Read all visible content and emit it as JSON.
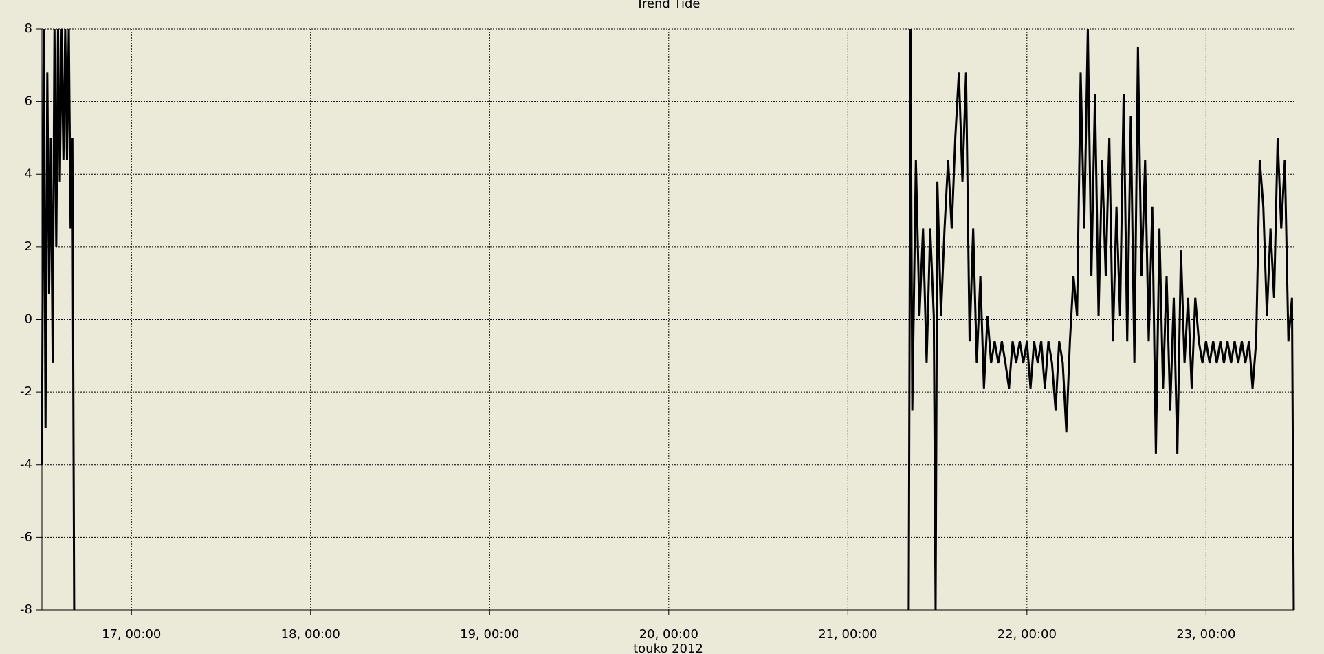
{
  "chart_data": {
    "type": "line",
    "title": "Trend Tide",
    "x_label": "touko 2012",
    "xlim": [
      16.5,
      23.49
    ],
    "ylim": [
      -8,
      8
    ],
    "xticks": [
      {
        "value": 17,
        "label": "17, 00:00"
      },
      {
        "value": 18,
        "label": "18, 00:00"
      },
      {
        "value": 19,
        "label": "19, 00:00"
      },
      {
        "value": 20,
        "label": "20, 00:00"
      },
      {
        "value": 21,
        "label": "21, 00:00"
      },
      {
        "value": 22,
        "label": "22, 00:00"
      },
      {
        "value": 23,
        "label": "23, 00:00"
      }
    ],
    "yticks": [
      -8,
      -6,
      -4,
      -2,
      0,
      2,
      4,
      6,
      8
    ],
    "grid": true,
    "background": "#ebe9d8",
    "series": [
      {
        "color": "#000000",
        "x": [
          16.5,
          16.51,
          16.52,
          16.53,
          16.54,
          16.55,
          16.56,
          16.57,
          16.58,
          16.59,
          16.6,
          16.61,
          16.62,
          16.63,
          16.64,
          16.65,
          16.66,
          16.67,
          16.68,
          19.0,
          21.34,
          21.35,
          21.36,
          21.38,
          21.4,
          21.42,
          21.44,
          21.46,
          21.48,
          21.49,
          21.5,
          21.52,
          21.54,
          21.56,
          21.58,
          21.6,
          21.62,
          21.64,
          21.66,
          21.68,
          21.7,
          21.72,
          21.74,
          21.76,
          21.78,
          21.8,
          21.82,
          21.84,
          21.86,
          21.88,
          21.9,
          21.92,
          21.94,
          21.96,
          21.98,
          22.0,
          22.02,
          22.04,
          22.06,
          22.08,
          22.1,
          22.12,
          22.14,
          22.16,
          22.18,
          22.2,
          22.22,
          22.24,
          22.26,
          22.28,
          22.3,
          22.32,
          22.34,
          22.36,
          22.38,
          22.4,
          22.42,
          22.44,
          22.46,
          22.48,
          22.5,
          22.52,
          22.54,
          22.56,
          22.58,
          22.6,
          22.62,
          22.64,
          22.66,
          22.68,
          22.7,
          22.72,
          22.74,
          22.76,
          22.78,
          22.8,
          22.82,
          22.84,
          22.86,
          22.88,
          22.9,
          22.92,
          22.94,
          22.96,
          22.98,
          23.0,
          23.02,
          23.04,
          23.06,
          23.08,
          23.1,
          23.12,
          23.14,
          23.16,
          23.18,
          23.2,
          23.22,
          23.24,
          23.26,
          23.28,
          23.3,
          23.32,
          23.34,
          23.36,
          23.38,
          23.4,
          23.42,
          23.44,
          23.46,
          23.48,
          23.49
        ],
        "values": [
          -4,
          8,
          -3,
          6.8,
          0.7,
          5,
          -1.2,
          8,
          2,
          8,
          3.8,
          8,
          4.4,
          8,
          4.4,
          8,
          2.5,
          5,
          -8,
          null,
          -8,
          8,
          -2.5,
          4.4,
          0.1,
          2.5,
          -1.2,
          2.5,
          0.1,
          -8,
          3.8,
          0.1,
          2.5,
          4.4,
          2.5,
          5,
          6.8,
          3.8,
          6.8,
          -0.6,
          2.5,
          -1.2,
          1.2,
          -1.9,
          0.1,
          -1.2,
          -0.6,
          -1.2,
          -0.6,
          -1.2,
          -1.9,
          -0.6,
          -1.2,
          -0.6,
          -1.2,
          -0.6,
          -1.9,
          -0.6,
          -1.2,
          -0.6,
          -1.9,
          -0.6,
          -1.2,
          -2.5,
          -0.6,
          -1.2,
          -3.1,
          -0.6,
          1.2,
          0.1,
          6.8,
          2.5,
          8,
          1.2,
          6.2,
          0.1,
          4.4,
          1.2,
          5,
          -0.6,
          3.1,
          0.1,
          6.2,
          -0.6,
          5.6,
          -1.2,
          7.5,
          1.2,
          4.4,
          -0.6,
          3.1,
          -3.7,
          2.5,
          -1.9,
          1.2,
          -2.5,
          0.6,
          -3.7,
          1.9,
          -1.2,
          0.6,
          -1.9,
          0.6,
          -0.6,
          -1.2,
          -0.6,
          -1.2,
          -0.6,
          -1.2,
          -0.6,
          -1.2,
          -0.6,
          -1.2,
          -0.6,
          -1.2,
          -0.6,
          -1.2,
          -0.6,
          -1.9,
          -0.6,
          4.4,
          3.1,
          0.1,
          2.5,
          0.6,
          5,
          2.5,
          4.4,
          -0.6,
          0.6,
          -8
        ]
      }
    ]
  }
}
